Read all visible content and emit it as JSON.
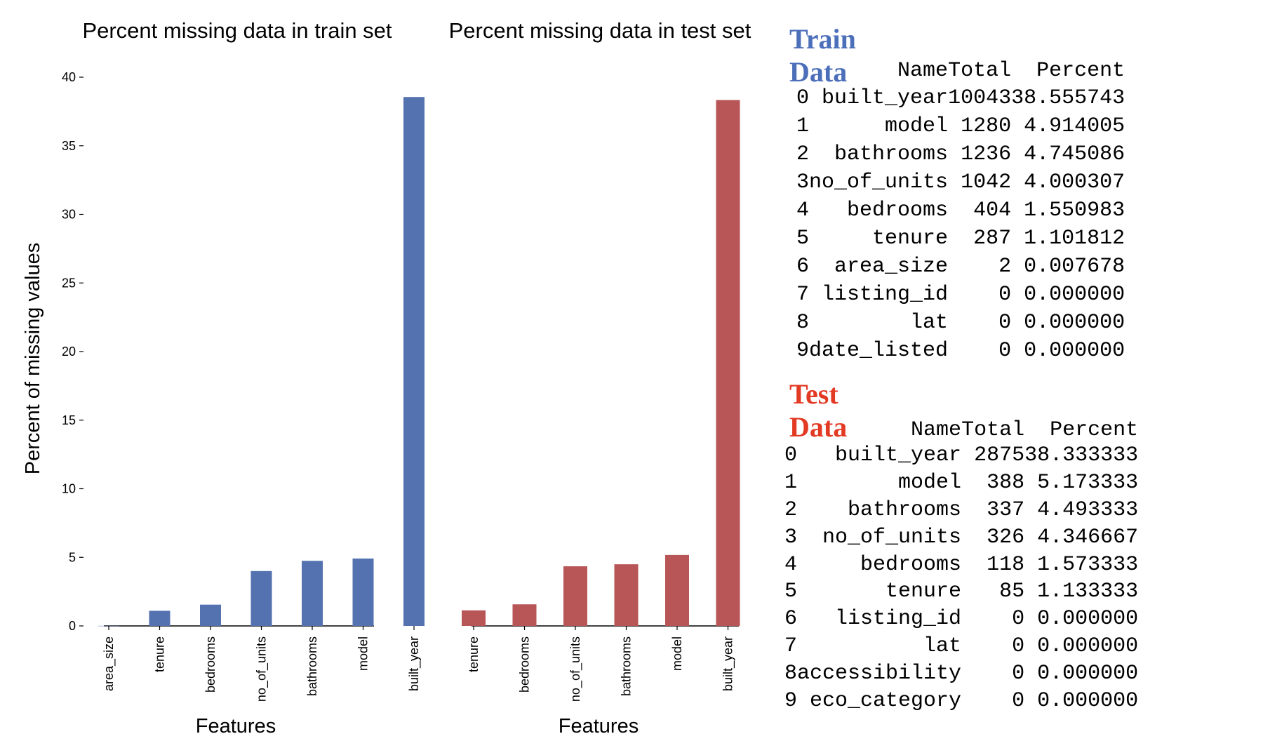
{
  "colors": {
    "train_bar": "#5472b0",
    "test_bar": "#b85556",
    "train_title": "#4c6fba",
    "test_title": "#e33a24"
  },
  "chart_data": [
    {
      "type": "bar",
      "title": "Percent missing data in train set",
      "xlabel": "Features",
      "ylabel": "Percent of missing values",
      "ylim": [
        0,
        40
      ],
      "yticks": [
        0,
        5,
        10,
        15,
        20,
        25,
        30,
        35,
        40
      ],
      "categories": [
        "area_size",
        "tenure",
        "bedrooms",
        "no_of_units",
        "bathrooms",
        "model",
        "built_year"
      ],
      "values": [
        0.007678,
        1.101812,
        1.550983,
        4.000307,
        4.745086,
        4.914005,
        38.555743
      ],
      "grid": false
    },
    {
      "type": "bar",
      "title": "Percent missing data in test set",
      "xlabel": "Features",
      "ylabel": "",
      "ylim": [
        0,
        40
      ],
      "categories": [
        "tenure",
        "bedrooms",
        "no_of_units",
        "bathrooms",
        "model",
        "built_year"
      ],
      "values": [
        1.133333,
        1.573333,
        4.346667,
        4.493333,
        5.173333,
        38.333333
      ],
      "grid": false
    }
  ],
  "tables": {
    "train": {
      "title": "Train Data",
      "columns": [
        "Name",
        "Total",
        "Percent"
      ],
      "rows": [
        [
          "0",
          "built_year",
          "10043",
          "38.555743"
        ],
        [
          "1",
          "model",
          "1280",
          "4.914005"
        ],
        [
          "2",
          "bathrooms",
          "1236",
          "4.745086"
        ],
        [
          "3",
          "no_of_units",
          "1042",
          "4.000307"
        ],
        [
          "4",
          "bedrooms",
          "404",
          "1.550983"
        ],
        [
          "5",
          "tenure",
          "287",
          "1.101812"
        ],
        [
          "6",
          "area_size",
          "2",
          "0.007678"
        ],
        [
          "7",
          "listing_id",
          "0",
          "0.000000"
        ],
        [
          "8",
          "lat",
          "0",
          "0.000000"
        ],
        [
          "9",
          "date_listed",
          "0",
          "0.000000"
        ]
      ]
    },
    "test": {
      "title": "Test Data",
      "columns": [
        "Name",
        "Total",
        "Percent"
      ],
      "rows": [
        [
          "0",
          "built_year",
          "2875",
          "38.333333"
        ],
        [
          "1",
          "model",
          "388",
          "5.173333"
        ],
        [
          "2",
          "bathrooms",
          "337",
          "4.493333"
        ],
        [
          "3",
          "no_of_units",
          "326",
          "4.346667"
        ],
        [
          "4",
          "bedrooms",
          "118",
          "1.573333"
        ],
        [
          "5",
          "tenure",
          "85",
          "1.133333"
        ],
        [
          "6",
          "listing_id",
          "0",
          "0.000000"
        ],
        [
          "7",
          "lat",
          "0",
          "0.000000"
        ],
        [
          "8",
          "accessibility",
          "0",
          "0.000000"
        ],
        [
          "9",
          "eco_category",
          "0",
          "0.000000"
        ]
      ]
    }
  }
}
